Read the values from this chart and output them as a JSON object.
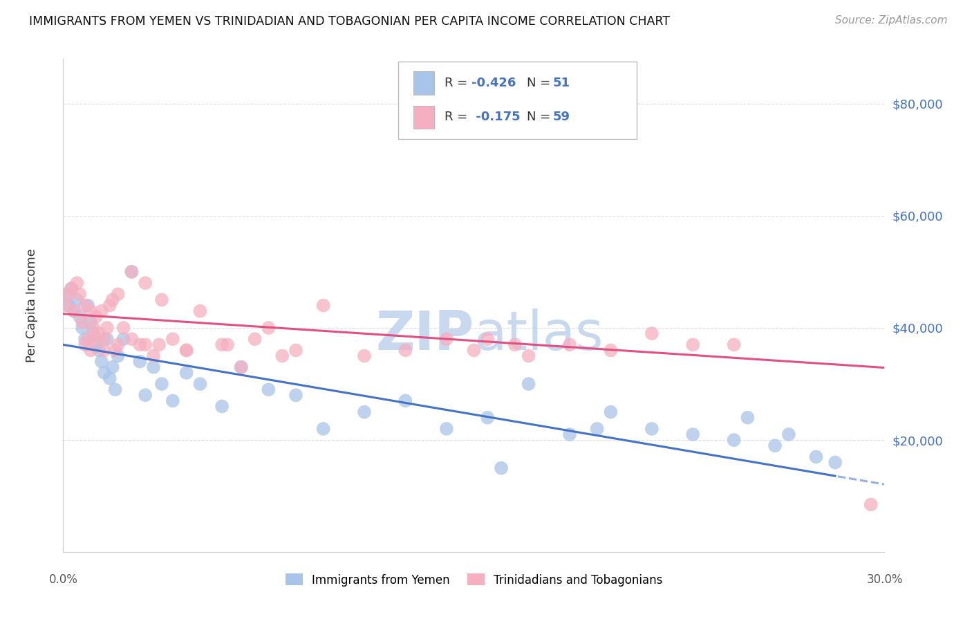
{
  "title": "IMMIGRANTS FROM YEMEN VS TRINIDADIAN AND TOBAGONIAN PER CAPITA INCOME CORRELATION CHART",
  "source": "Source: ZipAtlas.com",
  "ylabel": "Per Capita Income",
  "legend_label_blue": "Immigrants from Yemen",
  "legend_label_pink": "Trinidadians and Tobagonians",
  "blue_color": "#a8c4e8",
  "pink_color": "#f5afc0",
  "trendline_blue": "#4472c4",
  "trendline_pink": "#e05080",
  "ytick_color": "#4472c4",
  "yticks": [
    0,
    20000,
    40000,
    60000,
    80000
  ],
  "ytick_labels": [
    "",
    "$20,000",
    "$40,000",
    "$60,000",
    "$80,000"
  ],
  "xmin": 0.0,
  "xmax": 0.3,
  "ymin": 0,
  "ymax": 88000,
  "blue_intercept": 37000,
  "blue_slope": -83000,
  "pink_intercept": 42500,
  "pink_slope": -32000,
  "blue_x": [
    0.001,
    0.002,
    0.003,
    0.004,
    0.005,
    0.006,
    0.007,
    0.008,
    0.009,
    0.01,
    0.011,
    0.012,
    0.013,
    0.014,
    0.015,
    0.016,
    0.017,
    0.018,
    0.019,
    0.02,
    0.022,
    0.025,
    0.028,
    0.03,
    0.033,
    0.036,
    0.04,
    0.045,
    0.05,
    0.058,
    0.065,
    0.075,
    0.085,
    0.095,
    0.11,
    0.125,
    0.14,
    0.155,
    0.17,
    0.185,
    0.2,
    0.215,
    0.23,
    0.245,
    0.26,
    0.275,
    0.282,
    0.265,
    0.25,
    0.195,
    0.16
  ],
  "blue_y": [
    46000,
    44000,
    47000,
    43000,
    45000,
    42000,
    40000,
    38000,
    44000,
    41000,
    39000,
    37000,
    36000,
    34000,
    32000,
    38000,
    31000,
    33000,
    29000,
    35000,
    38000,
    50000,
    34000,
    28000,
    33000,
    30000,
    27000,
    32000,
    30000,
    26000,
    33000,
    29000,
    28000,
    22000,
    25000,
    27000,
    22000,
    24000,
    30000,
    21000,
    25000,
    22000,
    21000,
    20000,
    19000,
    17000,
    16000,
    21000,
    24000,
    22000,
    15000
  ],
  "pink_x": [
    0.001,
    0.002,
    0.003,
    0.004,
    0.005,
    0.006,
    0.007,
    0.008,
    0.009,
    0.01,
    0.011,
    0.012,
    0.013,
    0.014,
    0.015,
    0.016,
    0.017,
    0.018,
    0.019,
    0.02,
    0.022,
    0.025,
    0.028,
    0.03,
    0.033,
    0.036,
    0.04,
    0.045,
    0.05,
    0.058,
    0.065,
    0.075,
    0.085,
    0.095,
    0.11,
    0.125,
    0.14,
    0.155,
    0.17,
    0.185,
    0.2,
    0.215,
    0.23,
    0.245,
    0.15,
    0.165,
    0.06,
    0.07,
    0.08,
    0.035,
    0.045,
    0.025,
    0.03,
    0.02,
    0.012,
    0.015,
    0.01,
    0.008,
    0.295
  ],
  "pink_y": [
    44000,
    46000,
    47000,
    43000,
    48000,
    46000,
    41000,
    44000,
    38000,
    43000,
    40000,
    42000,
    39000,
    43000,
    38000,
    40000,
    44000,
    45000,
    36000,
    46000,
    40000,
    50000,
    37000,
    48000,
    35000,
    45000,
    38000,
    36000,
    43000,
    37000,
    33000,
    40000,
    36000,
    44000,
    35000,
    36000,
    38000,
    38000,
    35000,
    37000,
    36000,
    39000,
    37000,
    37000,
    36000,
    37000,
    37000,
    38000,
    35000,
    37000,
    36000,
    38000,
    37000,
    37000,
    38000,
    36000,
    36000,
    37000,
    8500
  ],
  "watermark_zip_color": "#c8d8ef",
  "watermark_atlas_color": "#c8d8ef"
}
